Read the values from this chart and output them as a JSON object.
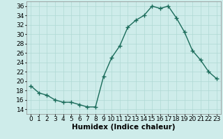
{
  "x": [
    0,
    1,
    2,
    3,
    4,
    5,
    6,
    7,
    8,
    9,
    10,
    11,
    12,
    13,
    14,
    15,
    16,
    17,
    18,
    19,
    20,
    21,
    22,
    23
  ],
  "y": [
    19,
    17.5,
    17,
    16,
    15.5,
    15.5,
    15,
    14.5,
    14.5,
    21,
    25,
    27.5,
    31.5,
    33,
    34,
    36,
    35.5,
    36,
    33.5,
    30.5,
    26.5,
    24.5,
    22,
    20.5
  ],
  "line_color": "#1a6b5a",
  "marker": "+",
  "marker_size": 4,
  "bg_color": "#ceecea",
  "grid_color": "#afd8d4",
  "xlabel": "Humidex (Indice chaleur)",
  "ylim": [
    13,
    37
  ],
  "xlim": [
    -0.5,
    23.5
  ],
  "yticks": [
    14,
    16,
    18,
    20,
    22,
    24,
    26,
    28,
    30,
    32,
    34,
    36
  ],
  "xtick_labels": [
    "0",
    "1",
    "2",
    "3",
    "4",
    "5",
    "6",
    "7",
    "8",
    "9",
    "10",
    "11",
    "12",
    "13",
    "14",
    "15",
    "16",
    "17",
    "18",
    "19",
    "20",
    "21",
    "22",
    "23"
  ],
  "xlabel_fontsize": 7.5,
  "tick_fontsize": 6.5,
  "linewidth": 1.0
}
